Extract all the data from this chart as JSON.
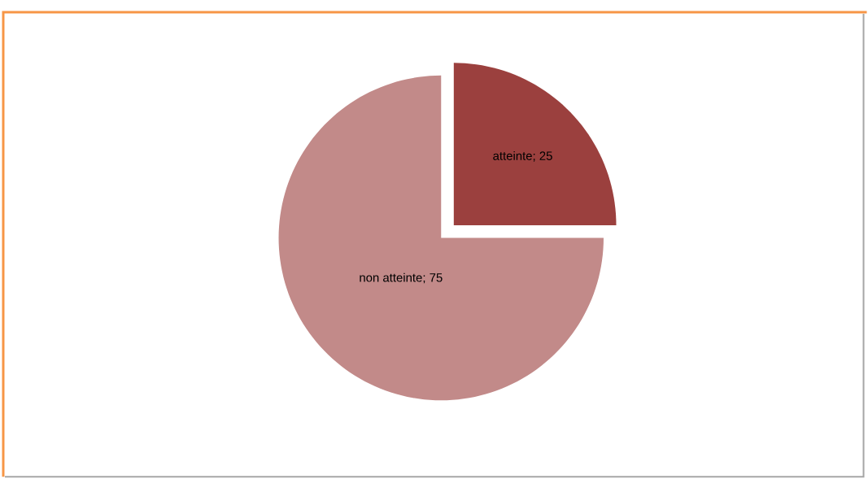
{
  "chart_data": {
    "type": "pie",
    "categories": [
      "atteinte",
      "non atteinte"
    ],
    "values": [
      25,
      75
    ],
    "colors": [
      "#9b403e",
      "#c28a89"
    ],
    "value_labels": [
      "; 25",
      "; 75"
    ]
  }
}
